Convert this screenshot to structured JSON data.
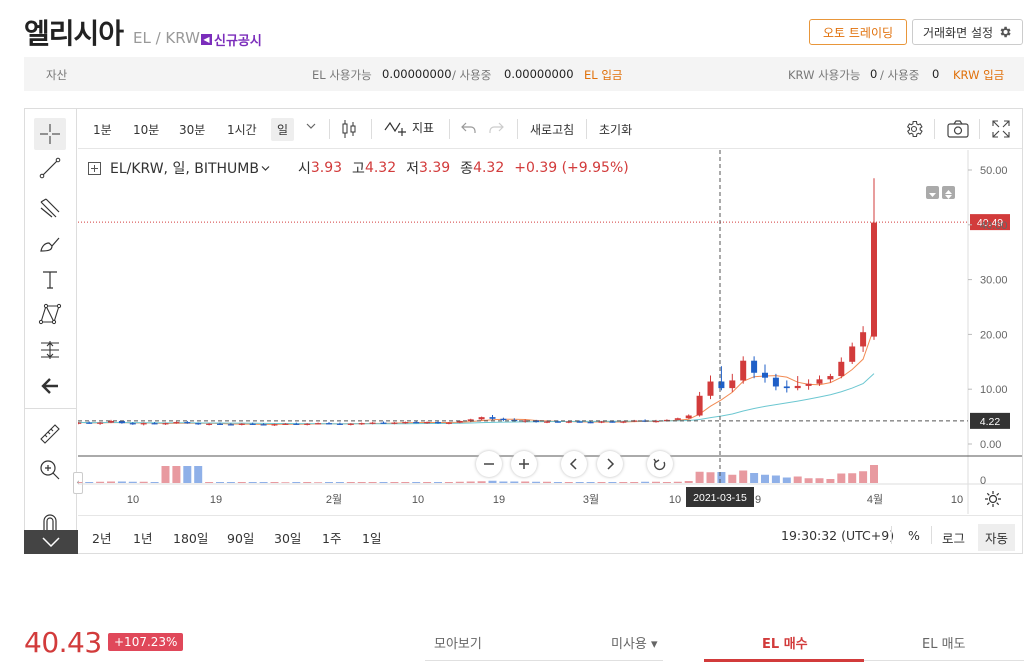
{
  "header": {
    "title": "엘리시아",
    "pair": "EL / KRW",
    "notice": "신규공시",
    "auto_trading": "오토 트레이딩",
    "settings": "거래화면 설정"
  },
  "assets": {
    "label": "자산",
    "el_available_label": "EL 사용가능",
    "el_available": "0.00000000",
    "el_in_use_label": "/ 사용중",
    "el_in_use": "0.00000000",
    "el_deposit": "EL 입금",
    "krw_available_label": "KRW 사용가능",
    "krw_available": "0",
    "krw_in_use_label": "/ 사용중",
    "krw_in_use": "0",
    "krw_deposit": "KRW 입금"
  },
  "toolbar": {
    "intervals": [
      "1분",
      "10분",
      "30분",
      "1시간",
      "일"
    ],
    "indicator": "지표",
    "refresh": "새로고침",
    "reset": "초기화"
  },
  "legend": {
    "symbol": "EL/KRW, 일, BITHUMB",
    "open_label": "시",
    "open": "3.93",
    "high_label": "고",
    "high": "4.32",
    "low_label": "저",
    "low": "3.39",
    "close_label": "종",
    "close": "4.32",
    "change": "+0.39 (+9.95%)"
  },
  "axis": {
    "y_ticks": [
      "50.00",
      "40.00",
      "30.00",
      "20.00",
      "10.00",
      "0.00"
    ],
    "last_price_tag": "40.49",
    "crosshair_tag": "4.22",
    "volume_tick": "0",
    "x_ticks": [
      "10",
      "19",
      "2월",
      "10",
      "19",
      "3월",
      "10",
      "9",
      "4월",
      "10"
    ],
    "crosshair_date": "2021-03-15"
  },
  "range_bar": {
    "ranges": [
      "2년",
      "1년",
      "180일",
      "90일",
      "30일",
      "1주",
      "1일"
    ],
    "time": "19:30:32 (UTC+9)",
    "percent": "%",
    "log": "로그",
    "auto": "자동"
  },
  "footer": {
    "price": "40.43",
    "change_badge": "+107.23%",
    "tab_collect": "모아보기",
    "tab_unused": "미사용 ▾",
    "tab_buy": "EL 매수",
    "tab_sell": "EL 매도"
  },
  "colors": {
    "up": "#d23b3b",
    "down": "#1f5fc7",
    "accent": "#e0700a"
  },
  "chart_data": {
    "type": "candlestick",
    "symbol": "EL/KRW",
    "ylim": [
      0,
      52
    ],
    "y_ticks": [
      0,
      10,
      20,
      30,
      40,
      50
    ],
    "last_price": 40.49,
    "crosshair_price": 4.22,
    "crosshair_date": "2021-03-15",
    "candles": [
      {
        "o": 3.9,
        "h": 4.3,
        "l": 3.7,
        "c": 4.1
      },
      {
        "o": 4.1,
        "h": 4.2,
        "l": 3.8,
        "c": 3.9
      },
      {
        "o": 3.9,
        "h": 4.1,
        "l": 3.7,
        "c": 4.0
      },
      {
        "o": 4.0,
        "h": 4.2,
        "l": 3.8,
        "c": 3.8
      },
      {
        "o": 3.8,
        "h": 4.0,
        "l": 3.6,
        "c": 3.9
      },
      {
        "o": 3.9,
        "h": 4.1,
        "l": 3.7,
        "c": 3.7
      },
      {
        "o": 3.7,
        "h": 4.0,
        "l": 3.5,
        "c": 3.9
      },
      {
        "o": 3.9,
        "h": 4.4,
        "l": 3.8,
        "c": 4.2
      },
      {
        "o": 4.2,
        "h": 4.3,
        "l": 3.7,
        "c": 3.8
      },
      {
        "o": 3.8,
        "h": 4.0,
        "l": 3.5,
        "c": 3.6
      },
      {
        "o": 3.6,
        "h": 3.9,
        "l": 3.4,
        "c": 3.8
      },
      {
        "o": 3.8,
        "h": 4.0,
        "l": 3.6,
        "c": 3.7
      },
      {
        "o": 3.7,
        "h": 3.9,
        "l": 3.5,
        "c": 3.8
      },
      {
        "o": 3.8,
        "h": 4.1,
        "l": 3.7,
        "c": 4.0
      },
      {
        "o": 4.0,
        "h": 4.2,
        "l": 3.7,
        "c": 3.8
      },
      {
        "o": 3.8,
        "h": 3.9,
        "l": 3.5,
        "c": 3.6
      },
      {
        "o": 3.6,
        "h": 3.8,
        "l": 3.4,
        "c": 3.7
      },
      {
        "o": 3.7,
        "h": 3.9,
        "l": 3.5,
        "c": 3.6
      },
      {
        "o": 3.6,
        "h": 3.8,
        "l": 3.4,
        "c": 3.5
      },
      {
        "o": 3.5,
        "h": 3.8,
        "l": 3.4,
        "c": 3.7
      },
      {
        "o": 3.7,
        "h": 3.9,
        "l": 3.5,
        "c": 3.6
      },
      {
        "o": 3.6,
        "h": 3.8,
        "l": 3.4,
        "c": 3.5
      },
      {
        "o": 3.5,
        "h": 3.7,
        "l": 3.3,
        "c": 3.6
      },
      {
        "o": 3.6,
        "h": 3.8,
        "l": 3.5,
        "c": 3.7
      },
      {
        "o": 3.7,
        "h": 3.9,
        "l": 3.5,
        "c": 3.6
      },
      {
        "o": 3.6,
        "h": 3.8,
        "l": 3.4,
        "c": 3.7
      },
      {
        "o": 3.7,
        "h": 3.9,
        "l": 3.6,
        "c": 3.8
      },
      {
        "o": 3.8,
        "h": 4.0,
        "l": 3.6,
        "c": 3.7
      },
      {
        "o": 3.7,
        "h": 3.9,
        "l": 3.5,
        "c": 3.6
      },
      {
        "o": 3.6,
        "h": 3.8,
        "l": 3.4,
        "c": 3.7
      },
      {
        "o": 3.7,
        "h": 3.9,
        "l": 3.5,
        "c": 3.8
      },
      {
        "o": 3.8,
        "h": 4.0,
        "l": 3.6,
        "c": 3.9
      },
      {
        "o": 3.9,
        "h": 4.1,
        "l": 3.7,
        "c": 3.8
      },
      {
        "o": 3.8,
        "h": 4.0,
        "l": 3.6,
        "c": 3.9
      },
      {
        "o": 3.9,
        "h": 4.1,
        "l": 3.7,
        "c": 4.0
      },
      {
        "o": 4.0,
        "h": 4.2,
        "l": 3.8,
        "c": 3.9
      },
      {
        "o": 3.9,
        "h": 4.1,
        "l": 3.7,
        "c": 4.0
      },
      {
        "o": 4.0,
        "h": 4.1,
        "l": 3.7,
        "c": 3.8
      },
      {
        "o": 3.8,
        "h": 4.0,
        "l": 3.6,
        "c": 3.9
      },
      {
        "o": 3.9,
        "h": 4.3,
        "l": 3.8,
        "c": 4.2
      },
      {
        "o": 4.2,
        "h": 4.6,
        "l": 4.0,
        "c": 4.5
      },
      {
        "o": 4.5,
        "h": 5.0,
        "l": 4.3,
        "c": 4.9
      },
      {
        "o": 4.9,
        "h": 5.3,
        "l": 4.4,
        "c": 4.6
      },
      {
        "o": 4.6,
        "h": 4.8,
        "l": 4.2,
        "c": 4.4
      },
      {
        "o": 4.4,
        "h": 4.7,
        "l": 4.1,
        "c": 4.2
      },
      {
        "o": 4.2,
        "h": 4.5,
        "l": 3.9,
        "c": 4.3
      },
      {
        "o": 4.3,
        "h": 4.4,
        "l": 3.9,
        "c": 4.0
      },
      {
        "o": 4.0,
        "h": 4.3,
        "l": 3.8,
        "c": 4.1
      },
      {
        "o": 4.1,
        "h": 4.3,
        "l": 3.9,
        "c": 4.0
      },
      {
        "o": 4.0,
        "h": 4.2,
        "l": 3.8,
        "c": 4.1
      },
      {
        "o": 4.1,
        "h": 4.3,
        "l": 3.9,
        "c": 4.0
      },
      {
        "o": 4.0,
        "h": 4.2,
        "l": 3.8,
        "c": 3.9
      },
      {
        "o": 3.9,
        "h": 4.2,
        "l": 3.8,
        "c": 4.1
      },
      {
        "o": 4.1,
        "h": 4.3,
        "l": 3.9,
        "c": 4.0
      },
      {
        "o": 4.0,
        "h": 4.2,
        "l": 3.8,
        "c": 4.1
      },
      {
        "o": 4.1,
        "h": 4.4,
        "l": 4.0,
        "c": 4.3
      },
      {
        "o": 4.3,
        "h": 4.5,
        "l": 4.0,
        "c": 4.1
      },
      {
        "o": 4.1,
        "h": 4.4,
        "l": 3.9,
        "c": 4.2
      },
      {
        "o": 4.2,
        "h": 4.5,
        "l": 4.1,
        "c": 4.4
      },
      {
        "o": 4.4,
        "h": 4.8,
        "l": 4.3,
        "c": 4.7
      },
      {
        "o": 4.7,
        "h": 5.4,
        "l": 4.6,
        "c": 5.2
      },
      {
        "o": 5.2,
        "h": 9.5,
        "l": 5.0,
        "c": 8.8
      },
      {
        "o": 8.8,
        "h": 12.5,
        "l": 8.2,
        "c": 11.4
      },
      {
        "o": 11.4,
        "h": 14.2,
        "l": 9.8,
        "c": 10.2
      },
      {
        "o": 10.2,
        "h": 12.8,
        "l": 9.5,
        "c": 11.6
      },
      {
        "o": 11.6,
        "h": 16.0,
        "l": 11.0,
        "c": 15.2
      },
      {
        "o": 15.2,
        "h": 16.0,
        "l": 12.0,
        "c": 13.0
      },
      {
        "o": 13.0,
        "h": 14.5,
        "l": 11.2,
        "c": 12.1
      },
      {
        "o": 12.1,
        "h": 12.8,
        "l": 9.8,
        "c": 10.5
      },
      {
        "o": 10.5,
        "h": 11.6,
        "l": 9.4,
        "c": 10.2
      },
      {
        "o": 10.2,
        "h": 12.4,
        "l": 9.8,
        "c": 10.6
      },
      {
        "o": 10.6,
        "h": 11.8,
        "l": 9.9,
        "c": 11.0
      },
      {
        "o": 11.0,
        "h": 12.5,
        "l": 10.6,
        "c": 11.8
      },
      {
        "o": 11.8,
        "h": 12.8,
        "l": 11.2,
        "c": 12.4
      },
      {
        "o": 12.4,
        "h": 15.8,
        "l": 12.0,
        "c": 15.0
      },
      {
        "o": 15.0,
        "h": 18.5,
        "l": 14.6,
        "c": 17.8
      },
      {
        "o": 17.8,
        "h": 21.5,
        "l": 16.8,
        "c": 20.4
      },
      {
        "o": 19.6,
        "h": 48.5,
        "l": 19.0,
        "c": 40.4
      }
    ],
    "moving_averages": [
      {
        "name": "MA short",
        "color": "#f28b54"
      },
      {
        "name": "MA long",
        "color": "#6cc7d1"
      }
    ]
  }
}
